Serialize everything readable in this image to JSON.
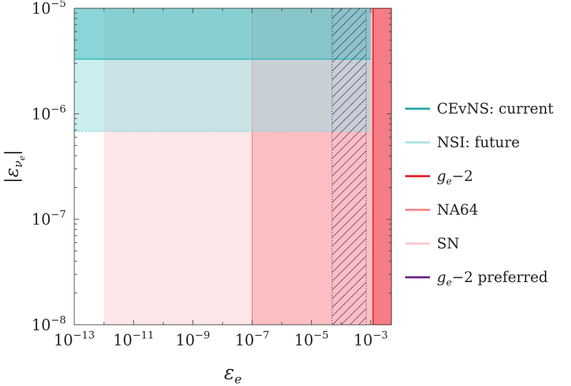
{
  "chart_data": {
    "type": "area",
    "title": "",
    "xlabel": "ε",
    "xlabel_sub": "e",
    "ylabel": "|ε",
    "ylabel_sub": "ν",
    "ylabel_subsub": "e",
    "ylabel_close": "|",
    "x_scale": "log",
    "y_scale": "log",
    "xlim": [
      1e-13,
      0.005
    ],
    "ylim": [
      1e-08,
      1e-05
    ],
    "x_ticks": [
      {
        "base": "10",
        "exp": "−13",
        "value": 1e-13
      },
      {
        "base": "10",
        "exp": "−11",
        "value": 1e-11
      },
      {
        "base": "10",
        "exp": "−9",
        "value": 1e-09
      },
      {
        "base": "10",
        "exp": "−7",
        "value": 1e-07
      },
      {
        "base": "10",
        "exp": "−5",
        "value": 1e-05
      },
      {
        "base": "10",
        "exp": "−3",
        "value": 0.001
      }
    ],
    "y_ticks": [
      {
        "base": "10",
        "exp": "−8",
        "value": 1e-08
      },
      {
        "base": "10",
        "exp": "−7",
        "value": 1e-07
      },
      {
        "base": "10",
        "exp": "−6",
        "value": 1e-06
      },
      {
        "base": "10",
        "exp": "−5",
        "value": 1e-05
      }
    ],
    "grid": false,
    "legend_position": "right",
    "regions": [
      {
        "key": "sn",
        "x_range": [
          1e-12,
          1e-07
        ],
        "y_range": [
          1e-08,
          1e-05
        ],
        "color": "#fcd2d4",
        "opacity": 0.55
      },
      {
        "key": "na64",
        "x_range": [
          1e-07,
          0.005
        ],
        "y_range": [
          1e-08,
          1e-05
        ],
        "color": "#f88a92",
        "opacity": 0.55
      },
      {
        "key": "ge2",
        "x_range": [
          0.0012,
          0.005
        ],
        "y_range": [
          1e-08,
          1e-05
        ],
        "color": "#f23c48",
        "opacity": 0.5
      },
      {
        "key": "nsi_future",
        "x_range": [
          1e-13,
          0.001
        ],
        "y_range": [
          6.8e-07,
          1e-05
        ],
        "color": "#9fdfe3",
        "opacity": 0.55
      },
      {
        "key": "cevns_current",
        "x_range": [
          1e-13,
          0.001
        ],
        "y_range": [
          3.3e-06,
          1e-05
        ],
        "color": "#39b8b8",
        "opacity": 0.45
      },
      {
        "key": "ge2_preferred",
        "x_range": [
          5e-05,
          0.0007
        ],
        "y_range": [
          1e-08,
          1e-05
        ],
        "color": "#5a2a6e",
        "hatched": true
      }
    ],
    "legend": [
      {
        "label": "CEvNS: current",
        "color": "#1aa6a6"
      },
      {
        "label": "NSI: future",
        "color": "#a6e1e5"
      },
      {
        "label": "−2",
        "prefix": "g",
        "prefix_sub": "e",
        "color": "#e0141e"
      },
      {
        "label": "NA64",
        "color": "#f08488"
      },
      {
        "label": "SN",
        "color": "#f9c7cc"
      },
      {
        "label": "−2 preferred",
        "prefix": "g",
        "prefix_sub": "e",
        "color": "#6a1a82"
      }
    ]
  }
}
